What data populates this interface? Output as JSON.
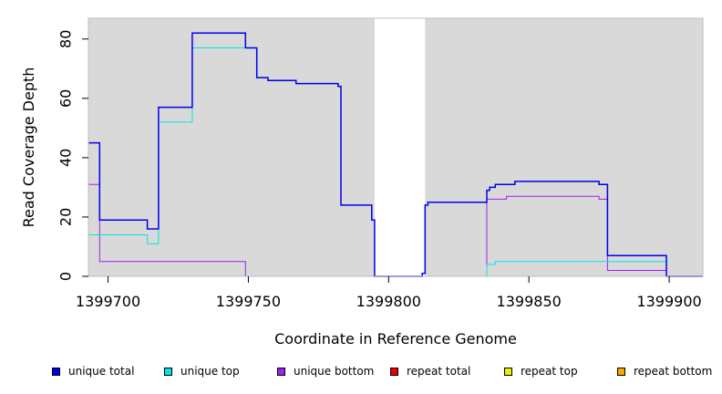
{
  "chart_data": {
    "type": "line",
    "step": true,
    "xlabel": "Coordinate in Reference Genome",
    "ylabel": "Read Coverage Depth",
    "xlim": [
      1399693,
      1399912
    ],
    "ylim": [
      0,
      87
    ],
    "x_ticks": [
      1399700,
      1399750,
      1399800,
      1399850,
      1399900
    ],
    "y_ticks": [
      0,
      20,
      40,
      60,
      80
    ],
    "background_color": "#d9d9d9",
    "excluded_region": [
      1399795,
      1399813
    ],
    "grid": false,
    "legend_position": "bottom",
    "series": [
      {
        "name": "unique total",
        "color": "#0000ee",
        "x": [
          1399693,
          1399697,
          1399714,
          1399718,
          1399730,
          1399749,
          1399753,
          1399757,
          1399767,
          1399782,
          1399783,
          1399794,
          1399795,
          1399800,
          1399812,
          1399813,
          1399814,
          1399835,
          1399836,
          1399837,
          1399838,
          1399842,
          1399845,
          1399875,
          1399878,
          1399899,
          1399912
        ],
        "y": [
          45,
          19,
          16,
          57,
          82,
          77,
          67,
          66,
          65,
          64,
          24,
          19,
          0,
          0,
          1,
          24,
          25,
          29,
          30,
          30,
          31,
          31,
          32,
          31,
          7,
          0,
          0
        ]
      },
      {
        "name": "unique top",
        "color": "#00e5e5",
        "x": [
          1399693,
          1399697,
          1399714,
          1399718,
          1399730,
          1399749,
          1399753,
          1399757,
          1399767,
          1399782,
          1399783,
          1399794,
          1399795,
          1399835,
          1399838,
          1399899,
          1399912
        ],
        "y": [
          14,
          14,
          11,
          52,
          77,
          77,
          67,
          66,
          65,
          64,
          24,
          19,
          0,
          4,
          5,
          0,
          0
        ]
      },
      {
        "name": "unique bottom",
        "color": "#a020f0",
        "x": [
          1399693,
          1399697,
          1399749,
          1399812,
          1399813,
          1399835,
          1399836,
          1399842,
          1399845,
          1399875,
          1399878,
          1399899,
          1399912
        ],
        "y": [
          31,
          5,
          0,
          0,
          0,
          26,
          26,
          27,
          27,
          26,
          2,
          0,
          0
        ]
      },
      {
        "name": "repeat total",
        "color": "#ee0000",
        "x": [
          1399693,
          1399912
        ],
        "y": [
          0,
          0
        ]
      },
      {
        "name": "repeat top",
        "color": "#eeee00",
        "x": [
          1399693,
          1399912
        ],
        "y": [
          0,
          0
        ]
      },
      {
        "name": "repeat bottom",
        "color": "#ffa500",
        "x": [
          1399693,
          1399912
        ],
        "y": [
          0,
          0
        ]
      }
    ]
  }
}
